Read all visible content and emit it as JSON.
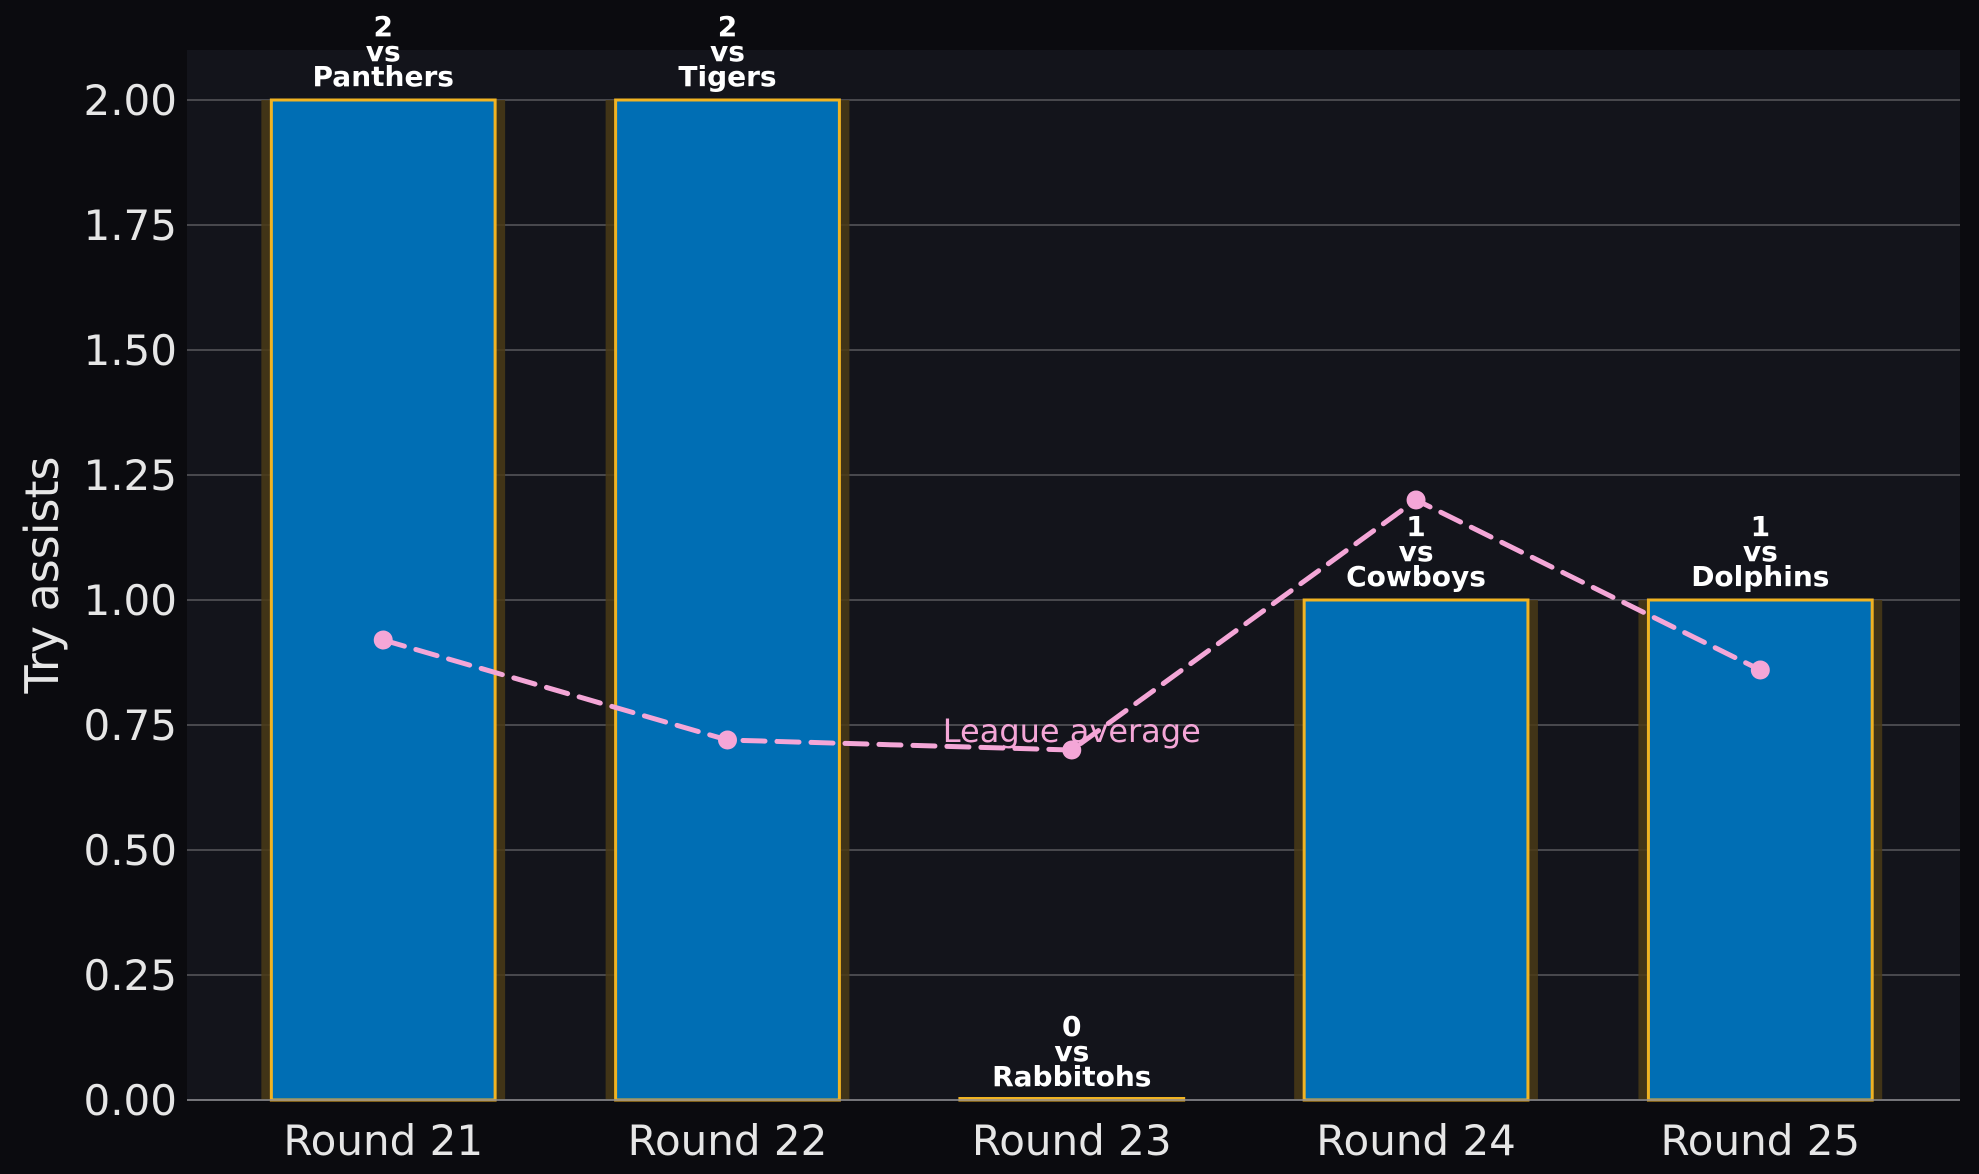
{
  "chart_data": {
    "type": "bar",
    "categories": [
      "Round 21",
      "Round 22",
      "Round 23",
      "Round 24",
      "Round 25"
    ],
    "values": [
      2,
      2,
      0,
      1,
      1
    ],
    "opponents": [
      "Panthers",
      "Tigers",
      "Rabbitohs",
      "Cowboys",
      "Dolphins"
    ],
    "vs_text": "vs",
    "ylabel": "Try assists",
    "xlabel": "",
    "ylim": [
      0,
      2.1
    ],
    "yticks": [
      "0.00",
      "0.25",
      "0.50",
      "0.75",
      "1.00",
      "1.25",
      "1.50",
      "1.75",
      "2.00"
    ],
    "grid": true,
    "overlay_line": {
      "label": "League average",
      "style": "dashed",
      "values": [
        0.92,
        0.72,
        0.7,
        1.2,
        0.86
      ]
    },
    "colors": {
      "page_background": "#0b0b0f",
      "plot_background": "#13141b",
      "bar_fill": "#006eb4",
      "bar_edge": "#f0b323",
      "bar_glow": "#4a3a16",
      "grid": "#5a5a5e",
      "average_line": "#f4a6d7",
      "text": "#e6e6e6"
    }
  }
}
